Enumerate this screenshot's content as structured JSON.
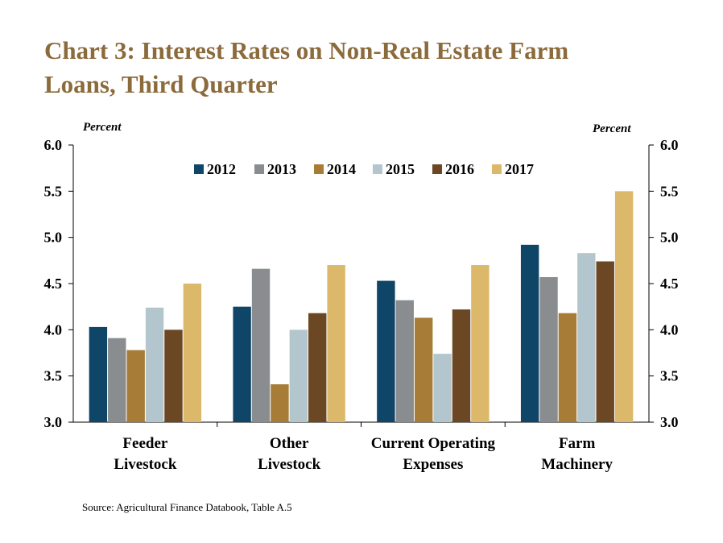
{
  "title_lines": [
    "Chart 3: Interest Rates on Non-Real Estate Farm",
    "Loans, Third Quarter"
  ],
  "left_axis_unit": "Percent",
  "right_axis_unit": "Percent",
  "source": "Source: Agricultural Finance Databook, Table A.5",
  "colors": {
    "title": "#8b6a3b",
    "series": [
      "#0f4566",
      "#8a8d90",
      "#a67c37",
      "#b4c6cd",
      "#6b4723",
      "#dcb86a"
    ]
  },
  "chart_data": {
    "type": "bar",
    "title": "Chart 3: Interest Rates on Non-Real Estate Farm Loans, Third Quarter",
    "categories": [
      [
        "Feeder",
        "Livestock"
      ],
      [
        "Other",
        "Livestock"
      ],
      [
        "Current Operating",
        "Expenses"
      ],
      [
        "Farm",
        "Machinery"
      ]
    ],
    "series": [
      {
        "name": "2012",
        "values": [
          4.03,
          4.25,
          4.53,
          4.92
        ]
      },
      {
        "name": "2013",
        "values": [
          3.91,
          4.66,
          4.32,
          4.57
        ]
      },
      {
        "name": "2014",
        "values": [
          3.78,
          3.41,
          4.13,
          4.18
        ]
      },
      {
        "name": "2015",
        "values": [
          4.24,
          4.0,
          3.74,
          4.83
        ]
      },
      {
        "name": "2016",
        "values": [
          4.0,
          4.18,
          4.22,
          4.74
        ]
      },
      {
        "name": "2017",
        "values": [
          4.5,
          4.7,
          4.7,
          5.5
        ]
      }
    ],
    "ylim": [
      3.0,
      6.0
    ],
    "yticks": [
      "3.0",
      "3.5",
      "4.0",
      "4.5",
      "5.0",
      "5.5",
      "6.0"
    ],
    "ylabel": "Percent",
    "y2label": "Percent",
    "legend_position": "top-center",
    "grid": false
  }
}
